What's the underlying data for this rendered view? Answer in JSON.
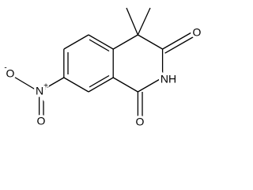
{
  "atoms": {
    "o_top": "O",
    "nh": "NH",
    "o_bottom": "O",
    "nitro_n": "N",
    "nitro_n_charge": "+",
    "nitro_o_single": "O",
    "nitro_o_charge": "-",
    "nitro_o_double": "O"
  }
}
